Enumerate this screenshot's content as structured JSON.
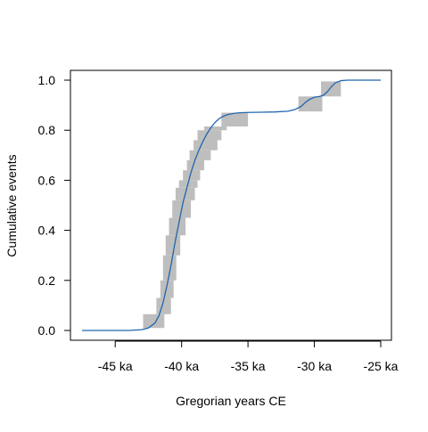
{
  "chart_data": {
    "type": "line",
    "title": "",
    "xlabel": "Gregorian years CE",
    "ylabel": "Cumulative events",
    "xlim": [
      -47500,
      -25000
    ],
    "ylim": [
      0,
      1
    ],
    "x_ticks": [
      {
        "value": -45000,
        "label": "-45 ka"
      },
      {
        "value": -40000,
        "label": "-40 ka"
      },
      {
        "value": -35000,
        "label": "-35 ka"
      },
      {
        "value": -30000,
        "label": "-30 ka"
      },
      {
        "value": -25000,
        "label": "-25 ka"
      }
    ],
    "y_ticks": [
      {
        "value": 0.0,
        "label": "0.0"
      },
      {
        "value": 0.2,
        "label": "0.2"
      },
      {
        "value": 0.4,
        "label": "0.4"
      },
      {
        "value": 0.6,
        "label": "0.6"
      },
      {
        "value": 0.8,
        "label": "0.8"
      },
      {
        "value": 1.0,
        "label": "1.0"
      }
    ],
    "grid": false,
    "series": [
      {
        "kind": "envelope",
        "color": "#bebebe",
        "boxes": [
          {
            "x0": -42900,
            "x1": -41300,
            "y0": 0.01,
            "y1": 0.065
          },
          {
            "x0": -41900,
            "x1": -40800,
            "y0": 0.065,
            "y1": 0.13
          },
          {
            "x0": -41600,
            "x1": -40600,
            "y0": 0.13,
            "y1": 0.2
          },
          {
            "x0": -41400,
            "x1": -40400,
            "y0": 0.2,
            "y1": 0.3
          },
          {
            "x0": -41200,
            "x1": -40100,
            "y0": 0.3,
            "y1": 0.38
          },
          {
            "x0": -40950,
            "x1": -39700,
            "y0": 0.38,
            "y1": 0.45
          },
          {
            "x0": -40700,
            "x1": -39300,
            "y0": 0.45,
            "y1": 0.52
          },
          {
            "x0": -40450,
            "x1": -39000,
            "y0": 0.52,
            "y1": 0.57
          },
          {
            "x0": -40200,
            "x1": -38800,
            "y0": 0.57,
            "y1": 0.6
          },
          {
            "x0": -39900,
            "x1": -38600,
            "y0": 0.6,
            "y1": 0.64
          },
          {
            "x0": -39600,
            "x1": -38300,
            "y0": 0.64,
            "y1": 0.68
          },
          {
            "x0": -39400,
            "x1": -37800,
            "y0": 0.68,
            "y1": 0.72
          },
          {
            "x0": -39100,
            "x1": -37300,
            "y0": 0.72,
            "y1": 0.76
          },
          {
            "x0": -38800,
            "x1": -37000,
            "y0": 0.76,
            "y1": 0.8
          },
          {
            "x0": -38300,
            "x1": -36600,
            "y0": 0.8,
            "y1": 0.815
          },
          {
            "x0": -37000,
            "x1": -35000,
            "y0": 0.815,
            "y1": 0.87
          },
          {
            "x0": -31200,
            "x1": -29400,
            "y0": 0.875,
            "y1": 0.935
          },
          {
            "x0": -29500,
            "x1": -28000,
            "y0": 0.935,
            "y1": 0.995
          }
        ]
      },
      {
        "kind": "curve",
        "color": "#2166ac",
        "x": [
          -47500,
          -45000,
          -44000,
          -43000,
          -42500,
          -42000,
          -41700,
          -41400,
          -41100,
          -40800,
          -40500,
          -40200,
          -39900,
          -39600,
          -39300,
          -39000,
          -38700,
          -38400,
          -38100,
          -37800,
          -37500,
          -37200,
          -36900,
          -36500,
          -36000,
          -35500,
          -35000,
          -34000,
          -33000,
          -32000,
          -31500,
          -31000,
          -30700,
          -30400,
          -30000,
          -29600,
          -29300,
          -29000,
          -28700,
          -28400,
          -28000,
          -27500,
          -27000,
          -25000
        ],
        "y": [
          0.0,
          0.0,
          0.0,
          0.003,
          0.01,
          0.03,
          0.06,
          0.11,
          0.18,
          0.26,
          0.35,
          0.43,
          0.51,
          0.57,
          0.63,
          0.68,
          0.72,
          0.755,
          0.785,
          0.81,
          0.83,
          0.845,
          0.855,
          0.863,
          0.868,
          0.87,
          0.871,
          0.872,
          0.873,
          0.876,
          0.882,
          0.895,
          0.91,
          0.922,
          0.932,
          0.935,
          0.94,
          0.955,
          0.975,
          0.99,
          0.998,
          1.0,
          1.0,
          1.0
        ]
      }
    ]
  }
}
